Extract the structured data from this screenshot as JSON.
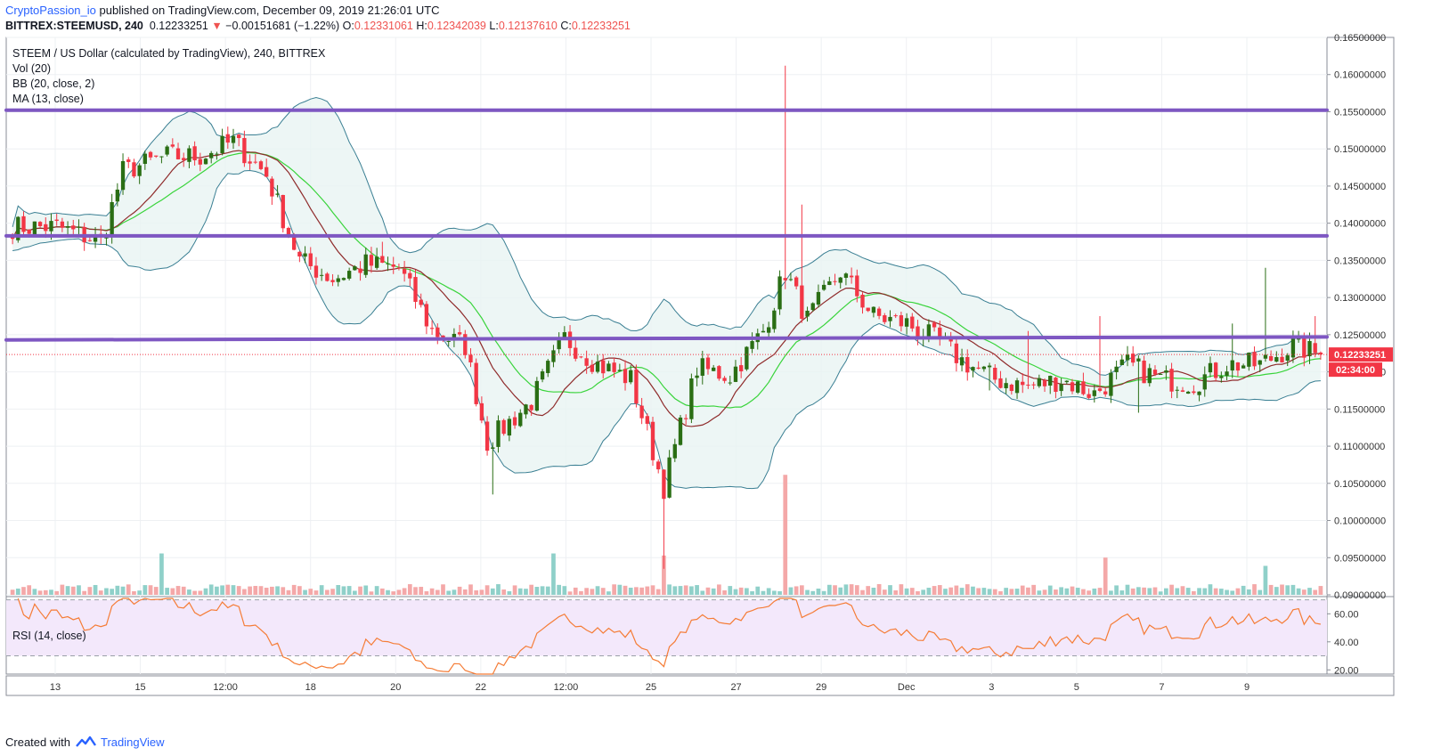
{
  "header": {
    "author": "CryptoPassion_io",
    "published_text": "published on TradingView.com, December 09, 2019 21:26:01 UTC",
    "symbol": "BITTREX:STEEMUSD, 240",
    "last_price": "0.12233251",
    "change_arrow": "▼",
    "change_text": "−0.00151681 (−1.22%)",
    "ohlc": {
      "o_label": "O:",
      "o": "0.12331061",
      "h_label": "H:",
      "h": "0.12342039",
      "l_label": "L:",
      "l": "0.12137610",
      "c_label": "C:",
      "c": "0.12233251"
    }
  },
  "legend": {
    "title": "STEEM / US Dollar (calculated by TradingView), 240, BITTREX",
    "vol": "Vol (20)",
    "bb": "BB (20, close, 2)",
    "ma": "MA (13, close)"
  },
  "rsi_legend": "RSI (14, close)",
  "price_labels": {
    "last_price": "0.12233251",
    "countdown": "02:34:00"
  },
  "footer": {
    "created_with": "Created with",
    "brand": "TradingView"
  },
  "colors": {
    "up": "#2a6e14",
    "down": "#f23645",
    "bb_band": "#3a7f93",
    "bb_fill": "#e9f4f3",
    "ma": "#8f2b2b",
    "bb_basis": "#39d43b",
    "resistance": "#7e57c2",
    "rsi": "#f57c36",
    "rsi_bg": "#f3e8fb",
    "vol_up": "#8fd0c9",
    "vol_down": "#f4a8a8"
  },
  "chart_data": [
    {
      "type": "candlestick",
      "title": "STEEM / US Dollar (calculated by TradingView), 240, BITTREX",
      "x_tick_labels": [
        "13",
        "15",
        "12:00",
        "18",
        "20",
        "22",
        "12:00",
        "25",
        "27",
        "29",
        "Dec",
        "3",
        "5",
        "7",
        "9"
      ],
      "y_tick_labels": [
        "0.16500000",
        "0.16000000",
        "0.15500000",
        "0.15000000",
        "0.14500000",
        "0.14000000",
        "0.13500000",
        "0.13000000",
        "0.12500000",
        "0.12000000",
        "0.11500000",
        "0.11000000",
        "0.10500000",
        "0.10000000",
        "0.09500000",
        "0.09000000"
      ],
      "ylim": [
        0.09,
        0.165
      ],
      "close_anchors": [
        [
          0,
          0.1395
        ],
        [
          8,
          0.1395
        ],
        [
          16,
          0.1375
        ],
        [
          20,
          0.147
        ],
        [
          28,
          0.149
        ],
        [
          34,
          0.149
        ],
        [
          40,
          0.151
        ],
        [
          46,
          0.1465
        ],
        [
          52,
          0.135
        ],
        [
          58,
          0.1325
        ],
        [
          64,
          0.1345
        ],
        [
          70,
          0.134
        ],
        [
          76,
          0.1255
        ],
        [
          82,
          0.1235
        ],
        [
          86,
          0.1105
        ],
        [
          94,
          0.116
        ],
        [
          100,
          0.1245
        ],
        [
          106,
          0.121
        ],
        [
          112,
          0.119
        ],
        [
          118,
          0.1045
        ],
        [
          124,
          0.1205
        ],
        [
          130,
          0.1195
        ],
        [
          136,
          0.1255
        ],
        [
          140,
          0.1335
        ],
        [
          144,
          0.127
        ],
        [
          150,
          0.1335
        ],
        [
          156,
          0.1275
        ],
        [
          162,
          0.1265
        ],
        [
          168,
          0.124
        ],
        [
          172,
          0.1215
        ],
        [
          178,
          0.119
        ],
        [
          184,
          0.118
        ],
        [
          190,
          0.119
        ],
        [
          196,
          0.117
        ],
        [
          202,
          0.121
        ],
        [
          208,
          0.119
        ],
        [
          214,
          0.1185
        ],
        [
          220,
          0.121
        ],
        [
          226,
          0.121
        ],
        [
          232,
          0.1235
        ],
        [
          237,
          0.1223
        ]
      ],
      "spikes": [
        {
          "bar": 14,
          "high": 0.1375
        },
        {
          "bar": 39,
          "high": 0.153
        },
        {
          "bar": 67,
          "high": 0.1375
        },
        {
          "bar": 87,
          "low": 0.1035
        },
        {
          "bar": 118,
          "low": 0.0935
        },
        {
          "bar": 140,
          "high": 0.1612
        },
        {
          "bar": 143,
          "high": 0.1425
        },
        {
          "bar": 177,
          "low": 0.1175
        },
        {
          "bar": 184,
          "high": 0.1255
        },
        {
          "bar": 197,
          "high": 0.1275
        },
        {
          "bar": 204,
          "low": 0.1145
        },
        {
          "bar": 221,
          "high": 0.1265
        },
        {
          "bar": 227,
          "high": 0.134
        },
        {
          "bar": 236,
          "high": 0.1275
        }
      ],
      "resistance_levels": [
        {
          "left": 0.1552,
          "right": 0.1552
        },
        {
          "left": 0.1383,
          "right": 0.1383
        },
        {
          "left": 0.1243,
          "right": 0.1247
        }
      ],
      "current_price": 0.12233251
    },
    {
      "type": "bar",
      "title": "Vol (20)",
      "spikes": [
        {
          "bar": 27,
          "value": 1.0
        },
        {
          "bar": 98,
          "value": 1.0
        },
        {
          "bar": 140,
          "value": 2.9
        },
        {
          "bar": 118,
          "value": 0.95
        },
        {
          "bar": 198,
          "value": 0.9
        },
        {
          "bar": 227,
          "value": 0.7
        }
      ]
    },
    {
      "type": "line",
      "title": "RSI (14, close)",
      "y_tick_labels": [
        "60.00",
        "40.00",
        "20.00"
      ],
      "ylim": [
        17,
        71
      ],
      "bands": [
        70,
        30
      ]
    }
  ]
}
